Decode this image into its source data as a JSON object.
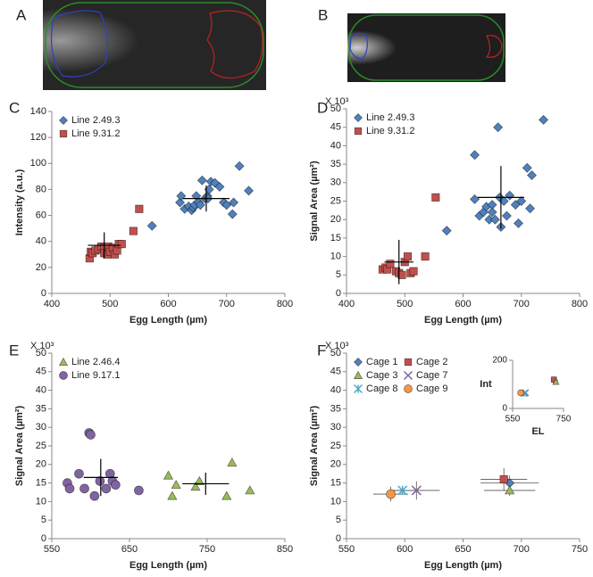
{
  "images": [
    {
      "label": "A"
    },
    {
      "label": "B"
    }
  ],
  "chart_data": [
    {
      "type": "scatter",
      "label": "C",
      "xlabel": "Egg Length (µm)",
      "ylabel": "Intensity (a.u.)",
      "xlim": [
        400,
        800
      ],
      "ylim": [
        0,
        140
      ],
      "xticks": [
        400,
        500,
        600,
        700,
        800
      ],
      "yticks": [
        0,
        20,
        40,
        60,
        80,
        100,
        120,
        140
      ],
      "legend": "upper left",
      "series": [
        {
          "name": "Line 2.49.3",
          "color": "#4f81bd",
          "marker": "diamond",
          "x": [
            572,
            620,
            622,
            628,
            635,
            640,
            643,
            645,
            648,
            652,
            655,
            658,
            663,
            667,
            668,
            670,
            673,
            680,
            688,
            695,
            700,
            710,
            712,
            722,
            738
          ],
          "values": [
            52,
            70,
            75,
            65,
            67,
            64,
            66,
            68,
            75,
            70,
            68,
            87,
            73,
            75,
            73,
            80,
            86,
            85,
            82,
            70,
            68,
            61,
            70,
            98,
            79
          ],
          "mean_x": 665,
          "mean_y": 73,
          "sd_x": 40,
          "sd_y": 10
        },
        {
          "name": "Line 9.31.2",
          "color": "#c0504d",
          "marker": "square",
          "x": [
            465,
            467,
            470,
            475,
            480,
            485,
            490,
            490,
            495,
            497,
            500,
            505,
            508,
            512,
            515,
            520,
            540,
            550
          ],
          "values": [
            27,
            32,
            31,
            33,
            34,
            36,
            35,
            31,
            30,
            36,
            32,
            35,
            30,
            33,
            38,
            38,
            48,
            65
          ],
          "mean_x": 490,
          "mean_y": 37,
          "sd_x": 28,
          "sd_y": 10
        }
      ]
    },
    {
      "type": "scatter",
      "label": "D",
      "xlabel": "Egg Length (µm)",
      "ylabel": "Signal Area (µm²)",
      "y_multiplier": "X 10³",
      "xlim": [
        400,
        800
      ],
      "ylim": [
        0,
        50
      ],
      "xticks": [
        400,
        500,
        600,
        700,
        800
      ],
      "yticks": [
        0,
        5,
        10,
        15,
        20,
        25,
        30,
        35,
        40,
        45,
        50
      ],
      "legend": "upper left",
      "series": [
        {
          "name": "Line 2.49.3",
          "color": "#4f81bd",
          "marker": "diamond",
          "x": [
            572,
            620,
            620,
            628,
            635,
            640,
            645,
            650,
            650,
            655,
            660,
            663,
            665,
            670,
            675,
            680,
            690,
            695,
            700,
            710,
            715,
            718,
            738
          ],
          "values": [
            17,
            37.5,
            25.5,
            21,
            22,
            23.5,
            20,
            24,
            22,
            20,
            45,
            26,
            18,
            25,
            21,
            26.5,
            24,
            19,
            25,
            34,
            23,
            32,
            47
          ],
          "mean_x": 665,
          "mean_y": 26,
          "sd_x": 40,
          "sd_y": 8.5
        },
        {
          "name": "Line 9.31.2",
          "color": "#c0504d",
          "marker": "square",
          "x": [
            462,
            467,
            470,
            475,
            485,
            490,
            495,
            500,
            505,
            510,
            515,
            535,
            553
          ],
          "values": [
            6.5,
            7,
            6.5,
            8,
            6,
            5.5,
            5,
            8.5,
            10,
            5.5,
            6,
            10,
            26
          ],
          "mean_x": 490,
          "mean_y": 8.5,
          "sd_x": 25,
          "sd_y": 6
        }
      ]
    },
    {
      "type": "scatter",
      "label": "E",
      "xlabel": "Egg Length (µm)",
      "ylabel": "Signal Area (µm²)",
      "y_multiplier": "X 10³",
      "xlim": [
        550,
        850
      ],
      "ylim": [
        0,
        50
      ],
      "xticks": [
        550,
        650,
        750,
        850
      ],
      "yticks": [
        0,
        5,
        10,
        15,
        20,
        25,
        30,
        35,
        40,
        45,
        50
      ],
      "legend": "upper left",
      "series": [
        {
          "name": "Line 2.46.4",
          "color": "#9bbb59",
          "marker": "triangle",
          "x": [
            700,
            705,
            710,
            735,
            740,
            775,
            782,
            805
          ],
          "values": [
            17,
            11.5,
            14.5,
            14,
            15.5,
            11.5,
            20.5,
            13
          ],
          "mean_x": 748,
          "mean_y": 14.8,
          "sd_x": 30,
          "sd_y": 3
        },
        {
          "name": "Line 9.17.1",
          "color": "#8064a2",
          "marker": "circle",
          "x": [
            570,
            573,
            585,
            592,
            598,
            600,
            605,
            612,
            620,
            625,
            628,
            632,
            662
          ],
          "values": [
            15,
            13.5,
            17.5,
            13.5,
            28.5,
            28,
            11.5,
            15.5,
            13.5,
            17.5,
            15.5,
            14.5,
            13
          ],
          "mean_x": 613,
          "mean_y": 16.5,
          "sd_x": 22,
          "sd_y": 5
        }
      ]
    },
    {
      "type": "errorbar",
      "label": "F",
      "xlabel": "Egg Length (µm)",
      "ylabel": "Signal Area (µm²)",
      "y_multiplier": "X 10³",
      "xlim": [
        550,
        750
      ],
      "ylim": [
        0,
        50
      ],
      "xticks": [
        550,
        600,
        650,
        700,
        750
      ],
      "yticks": [
        0,
        5,
        10,
        15,
        20,
        25,
        30,
        35,
        40,
        45,
        50
      ],
      "legend": "upper left",
      "inset": {
        "xlabel": "EL",
        "ylabel": "Int",
        "xlim": [
          550,
          750
        ],
        "ylim": [
          0,
          200
        ],
        "xticks": [
          550,
          750
        ],
        "yticks": [
          0,
          200
        ]
      },
      "series": [
        {
          "name": "Cage 1",
          "color": "#4f81bd",
          "marker": "diamond",
          "x": [
            690
          ],
          "values": [
            15
          ],
          "xerr": [
            25
          ],
          "yerr": [
            2
          ],
          "inset_x": [
            715
          ],
          "inset_values": [
            115
          ]
        },
        {
          "name": "Cage 2",
          "color": "#c0504d",
          "marker": "square",
          "x": [
            685
          ],
          "values": [
            16
          ],
          "xerr": [
            20
          ],
          "yerr": [
            3
          ],
          "inset_x": [
            712
          ],
          "inset_values": [
            120
          ]
        },
        {
          "name": "Cage 3",
          "color": "#9bbb59",
          "marker": "triangle",
          "x": [
            690
          ],
          "values": [
            13
          ],
          "xerr": [
            22
          ],
          "yerr": [
            1.5
          ],
          "inset_x": [
            720
          ],
          "inset_values": [
            110
          ]
        },
        {
          "name": "Cage 7",
          "color": "#8064a2",
          "marker": "x",
          "x": [
            610
          ],
          "values": [
            13
          ],
          "xerr": [
            20
          ],
          "yerr": [
            2.5
          ],
          "inset_x": [
            600
          ],
          "inset_values": [
            65
          ]
        },
        {
          "name": "Cage 8",
          "color": "#4bacc6",
          "marker": "star",
          "x": [
            598
          ],
          "values": [
            13
          ],
          "xerr": [
            10
          ],
          "yerr": [
            1
          ],
          "inset_x": [
            595
          ],
          "inset_values": [
            62
          ]
        },
        {
          "name": "Cage 9",
          "color": "#f79646",
          "marker": "circle",
          "x": [
            588
          ],
          "values": [
            12
          ],
          "xerr": [
            15
          ],
          "yerr": [
            2
          ],
          "inset_x": [
            582
          ],
          "inset_values": [
            65
          ]
        }
      ]
    }
  ]
}
